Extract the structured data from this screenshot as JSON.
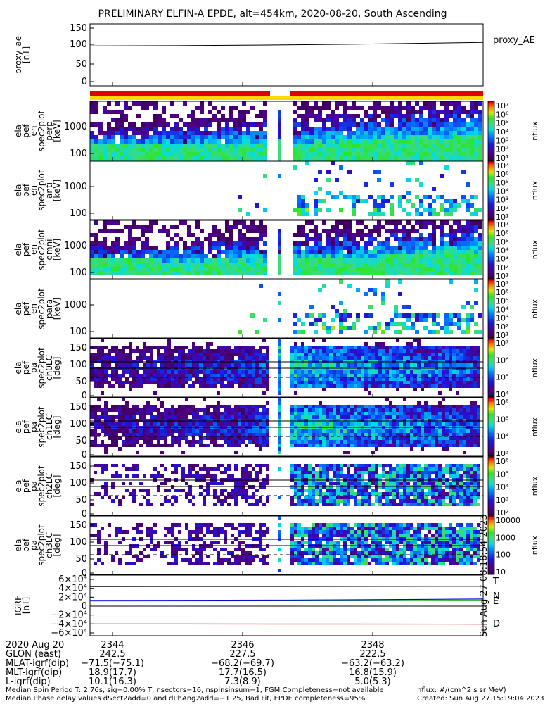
{
  "title": "PRELIMINARY ELFIN-A EPDE, alt=454km, 2020-08-20, South Ascending",
  "chart_data": {
    "type": "heatmap",
    "panels": [
      {
        "ylabel": [
          "proxy_ae",
          "[nT]"
        ],
        "yticks": [
          "150",
          "100",
          "50",
          "0"
        ],
        "legend": "proxy_AE",
        "series": [
          {
            "name": "proxy_AE",
            "values": [
              100,
              101,
              103,
              106,
              110
            ]
          }
        ]
      },
      {
        "ylabel": [
          "ela",
          "pef",
          "en",
          "spec2plot",
          "perp",
          "[keV]"
        ],
        "yticks": [
          "1000",
          "100"
        ],
        "cb_ticks": [
          "10⁷",
          "10⁶",
          "10⁵",
          "10⁴",
          "10³",
          "10²",
          "10¹"
        ],
        "cb_label": "nflux"
      },
      {
        "ylabel": [
          "ela",
          "pef",
          "en",
          "spec2plot",
          "anti",
          "[keV]"
        ],
        "yticks": [
          "1000",
          "100"
        ],
        "cb_ticks": [
          "10⁷",
          "10⁶",
          "10⁵",
          "10⁴",
          "10³",
          "10²",
          "10¹"
        ],
        "cb_label": "nflux"
      },
      {
        "ylabel": [
          "ela",
          "pef",
          "en",
          "spec2plot",
          "omni",
          "[keV]"
        ],
        "yticks": [
          "1000",
          "100"
        ],
        "cb_ticks": [
          "10⁷",
          "10⁶",
          "10⁵",
          "10⁴",
          "10³",
          "10²",
          "10¹"
        ],
        "cb_label": "nflux"
      },
      {
        "ylabel": [
          "ela",
          "pef",
          "en",
          "spec2plot",
          "para",
          "[keV]"
        ],
        "yticks": [
          "1000",
          "100"
        ],
        "cb_ticks": [
          "10⁷",
          "10⁶",
          "10⁵",
          "10⁴",
          "10³",
          "10²",
          "10¹"
        ],
        "cb_label": "nflux"
      },
      {
        "ylabel": [
          "ela",
          "pef",
          "pa",
          "spec2plot",
          "ch0LC",
          "[deg]"
        ],
        "yticks": [
          "150",
          "100",
          "50",
          "0"
        ],
        "cb_ticks": [
          "10⁷",
          "10⁶",
          "10⁵",
          "10⁴"
        ],
        "cb_label": "nflux"
      },
      {
        "ylabel": [
          "ela",
          "pef",
          "pa",
          "spec2plot",
          "ch1LC",
          "[deg]"
        ],
        "yticks": [
          "150",
          "100",
          "50",
          "0"
        ],
        "cb_ticks": [
          "10⁶",
          "10⁵",
          "10⁴",
          "10³"
        ],
        "cb_label": "nflux"
      },
      {
        "ylabel": [
          "ela",
          "pef",
          "pa",
          "spec2plot",
          "ch2LC",
          "[deg]"
        ],
        "yticks": [
          "150",
          "100",
          "50",
          "0"
        ],
        "cb_ticks": [
          "10⁶",
          "10⁵",
          "10⁴",
          "10³",
          "10²"
        ],
        "cb_label": "nflux"
      },
      {
        "ylabel": [
          "ela",
          "pef",
          "pa",
          "spec2plot",
          "ch3LC",
          "[deg]"
        ],
        "yticks": [
          "150",
          "100",
          "50",
          "0"
        ],
        "cb_ticks": [
          "10000",
          "1000",
          "100",
          "10"
        ],
        "cb_label": "nflux"
      },
      {
        "ylabel": [
          "IGRF",
          "[nT]"
        ],
        "yticks": [
          "6×10⁴",
          "4×10⁴",
          "2×10⁴",
          "0",
          "−2×10⁴",
          "−4×10⁴",
          "−6×10⁴"
        ],
        "legend_entries": [
          "T",
          "N",
          "E",
          "D"
        ],
        "sidebar_text": "Sun Aug 27 08:18:54 2023",
        "series": [
          {
            "name": "T",
            "values": [
              44000,
              44200,
              44500
            ]
          },
          {
            "name": "N",
            "values": [
              13000,
              13500,
              16000
            ]
          },
          {
            "name": "E",
            "values": [
              11500,
              12000,
              13000
            ]
          },
          {
            "name": "D",
            "values": [
              -40000,
              -40200,
              -40500
            ]
          }
        ]
      }
    ],
    "x_ticks": [
      "2344",
      "2346",
      "2348"
    ]
  },
  "footer_rows": [
    {
      "label": "2020 Aug 20",
      "values": [
        "2344",
        "2346",
        "2348"
      ]
    },
    {
      "label": "GLON (east)",
      "values": [
        "242.5",
        "227.5",
        "222.5"
      ]
    },
    {
      "label": "MLAT-igrf(dip)",
      "values": [
        "−71.5(−75.1)",
        "−68.2(−69.7)",
        "−63.2(−63.2)"
      ]
    },
    {
      "label": "MLT-igrf(dip)",
      "values": [
        "18.9(17.7)",
        "17.7(16.5)",
        "16.8(15.9)"
      ]
    },
    {
      "label": "L-igrf(dip)",
      "values": [
        "10.1(16.3)",
        "7.3(8.9)",
        "5.0(5.3)"
      ]
    }
  ],
  "notes": {
    "line1": "Median Spin Period T: 2.76s, sig=0.00% T, nsectors=16, nspinsinsum=1, FGM Completeness=not available",
    "line2": "Median Phase delay values dSect2add=0 and dPhAng2add=−1.25, Bad Fit, EPDE completeness=95%",
    "nflux_units": "nflux: #/(cm^2 s sr MeV)",
    "created": "Created: Sun Aug 27 15:19:04 2023"
  }
}
